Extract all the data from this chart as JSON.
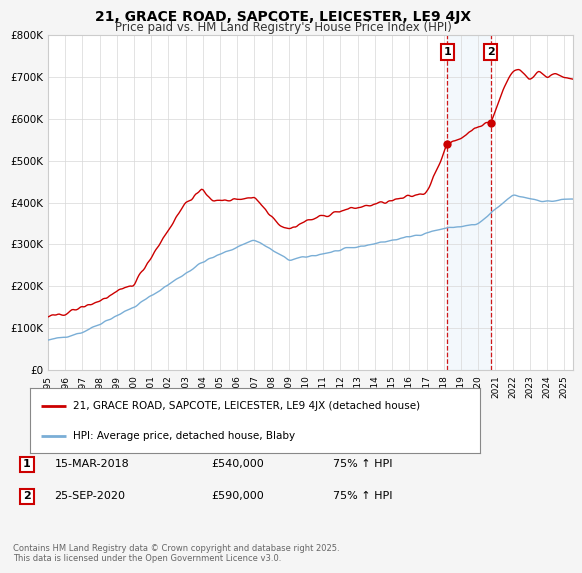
{
  "title": "21, GRACE ROAD, SAPCOTE, LEICESTER, LE9 4JX",
  "subtitle": "Price paid vs. HM Land Registry's House Price Index (HPI)",
  "background_color": "#f5f5f5",
  "plot_bg_color": "#ffffff",
  "red_line_color": "#cc0000",
  "blue_line_color": "#7aaed6",
  "marker1_date": 2018.2,
  "marker2_date": 2020.73,
  "marker1_value": 540000,
  "marker2_value": 590000,
  "vline_color": "#cc0000",
  "shade_color": "#d8eaf8",
  "annotation1": {
    "label": "1",
    "date": "15-MAR-2018",
    "price": "£540,000",
    "hpi": "75% ↑ HPI"
  },
  "annotation2": {
    "label": "2",
    "date": "25-SEP-2020",
    "price": "£590,000",
    "hpi": "75% ↑ HPI"
  },
  "legend1": "21, GRACE ROAD, SAPCOTE, LEICESTER, LE9 4JX (detached house)",
  "legend2": "HPI: Average price, detached house, Blaby",
  "footer": "Contains HM Land Registry data © Crown copyright and database right 2025.\nThis data is licensed under the Open Government Licence v3.0.",
  "ylim": [
    0,
    800000
  ],
  "xlim_start": 1995,
  "xlim_end": 2025.5
}
